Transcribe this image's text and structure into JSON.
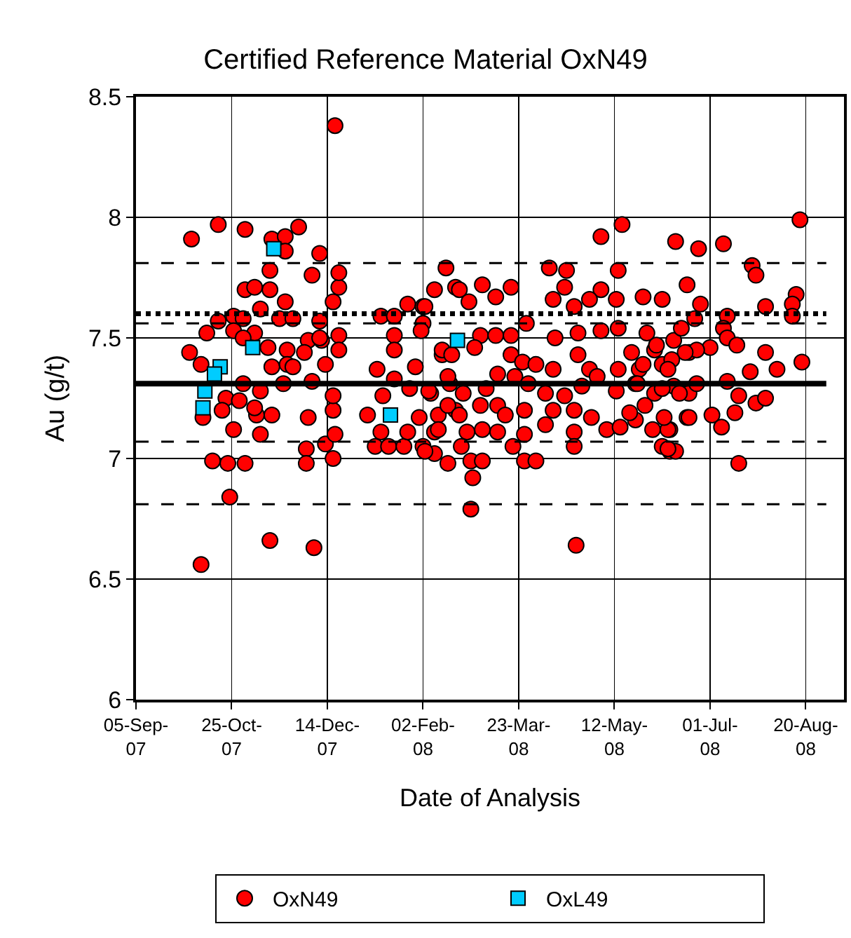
{
  "chart_data": {
    "type": "scatter",
    "title": "Certified Reference Material OxN49",
    "xlabel": "Date of Analysis",
    "ylabel": "Au (g/t)",
    "xlim": [
      "2007-09-05",
      "2008-09-09"
    ],
    "xticks": [
      {
        "value": "2007-09-05",
        "label": "05-Sep-07"
      },
      {
        "value": "2007-10-25",
        "label": "25-Oct-07"
      },
      {
        "value": "2007-12-14",
        "label": "14-Dec-07"
      },
      {
        "value": "2008-02-02",
        "label": "02-Feb-08"
      },
      {
        "value": "2008-03-23",
        "label": "23-Mar-08"
      },
      {
        "value": "2008-05-12",
        "label": "12-May-08"
      },
      {
        "value": "2008-07-01",
        "label": "01-Jul-08"
      },
      {
        "value": "2008-08-20",
        "label": "20-Aug-08"
      }
    ],
    "ylim": [
      6,
      8.5
    ],
    "yticks": [
      6,
      6.5,
      7,
      7.5,
      8,
      8.5
    ],
    "grid": true,
    "legend": "bottom",
    "marker": "circle",
    "ref_lines": [
      {
        "axis": "y",
        "value": 7.31,
        "color": "#000000",
        "line_style": "solid"
      },
      {
        "axis": "y",
        "value": 7.6,
        "color": "#000000",
        "line_style": "dotted"
      },
      {
        "axis": "y",
        "value": 7.81,
        "color": "#000000",
        "line_style": "dashed"
      },
      {
        "axis": "y",
        "value": 7.56,
        "color": "#000000",
        "line_style": "dashed"
      },
      {
        "axis": "y",
        "value": 7.07,
        "color": "#000000",
        "line_style": "dashed"
      },
      {
        "axis": "y",
        "value": 6.81,
        "color": "#000000",
        "line_style": "dashed"
      }
    ],
    "series": [
      {
        "name": "OxN49",
        "color": "#ff0000",
        "x": [
          "2007-10-04",
          "2007-10-09",
          "2007-10-03",
          "2007-10-09",
          "2007-10-12",
          "2007-10-18",
          "2007-10-15",
          "2007-10-23",
          "2007-10-24",
          "2007-11-01",
          "2007-11-01",
          "2007-10-18",
          "2007-10-26",
          "2007-10-31",
          "2007-10-26",
          "2007-11-01",
          "2007-11-06",
          "2007-11-09",
          "2007-11-06",
          "2007-10-31",
          "2007-11-14",
          "2007-11-14",
          "2007-11-15",
          "2007-11-22",
          "2007-11-22",
          "2007-11-29",
          "2007-11-22",
          "2007-11-19",
          "2007-11-26",
          "2007-11-13",
          "2007-11-15",
          "2007-11-23",
          "2007-11-23",
          "2007-11-26",
          "2007-11-21",
          "2007-12-04",
          "2007-12-02",
          "2007-12-06",
          "2007-12-10",
          "2007-12-10",
          "2007-12-11",
          "2007-12-13",
          "2007-12-06",
          "2007-12-04",
          "2007-12-03",
          "2007-12-03",
          "2007-12-13",
          "2007-12-17",
          "2007-12-18",
          "2007-12-17",
          "2007-12-07",
          "2007-11-14",
          "2007-12-18",
          "2007-12-17",
          "2007-12-20",
          "2007-12-20",
          "2007-12-20",
          "2007-12-20",
          "2007-10-10",
          "2007-10-26",
          "2007-11-09",
          "2007-11-15",
          "2007-11-07",
          "2007-11-06",
          "2007-10-31",
          "2007-10-22",
          "2007-10-29",
          "2007-10-20",
          "2007-11-09",
          "2007-12-17",
          "2007-12-10",
          "2008-01-09",
          "2008-01-04",
          "2008-01-08",
          "2008-01-11",
          "2008-01-18",
          "2008-01-18",
          "2008-01-18",
          "2008-01-12",
          "2008-01-11",
          "2008-01-18",
          "2008-01-25",
          "2008-01-29",
          "2008-02-02",
          "2008-02-02",
          "2008-02-08",
          "2008-02-14",
          "2008-01-31",
          "2008-02-08",
          "2008-02-02",
          "2008-02-15",
          "2008-02-08",
          "2008-01-26",
          "2008-02-06",
          "2008-02-12",
          "2008-01-15",
          "2008-01-23",
          "2008-01-25",
          "2008-02-19",
          "2008-02-16",
          "2008-02-19",
          "2008-02-21",
          "2008-03-04",
          "2008-03-19",
          "2008-02-26",
          "2008-03-11",
          "2008-03-27",
          "2008-04-08",
          "2008-04-17",
          "2008-04-16",
          "2008-04-10",
          "2008-04-21",
          "2008-05-05",
          "2008-05-16",
          "2008-05-14",
          "2008-05-05",
          "2008-04-29",
          "2008-05-13",
          "2008-05-27",
          "2008-06-06",
          "2008-05-29",
          "2008-05-14",
          "2008-05-05",
          "2008-04-23",
          "2008-04-11",
          "2008-03-03",
          "2008-03-11",
          "2008-03-19",
          "2008-02-29",
          "2008-02-12",
          "2008-02-17",
          "2008-03-19",
          "2008-03-25",
          "2008-04-01",
          "2008-04-10",
          "2008-04-23",
          "2008-04-29",
          "2008-05-14",
          "2008-05-21",
          "2008-06-02",
          "2008-06-12",
          "2008-06-20",
          "2008-06-06",
          "2008-05-25",
          "2008-02-05",
          "2008-02-15",
          "2008-02-23",
          "2008-03-06",
          "2008-03-12",
          "2008-03-21",
          "2008-03-28",
          "2008-04-06",
          "2008-04-16",
          "2008-04-25",
          "2008-05-03",
          "2008-05-13",
          "2008-05-23",
          "2008-06-02",
          "2008-06-12",
          "2008-06-20",
          "2008-02-10",
          "2008-02-15",
          "2008-02-21",
          "2008-03-03",
          "2008-03-12",
          "2008-03-16",
          "2008-03-26",
          "2008-04-06",
          "2008-04-10",
          "2008-04-21",
          "2008-04-30",
          "2008-05-08",
          "2008-05-15",
          "2008-05-23",
          "2008-06-01",
          "2008-06-10",
          "2008-06-19",
          "2008-02-10",
          "2008-02-25",
          "2008-03-04",
          "2008-03-12",
          "2008-03-26",
          "2008-04-21",
          "2008-02-03",
          "2008-02-22",
          "2008-02-27",
          "2008-02-28",
          "2008-03-04",
          "2008-03-20",
          "2008-03-26",
          "2008-04-01",
          "2008-04-21",
          "2008-06-06",
          "2008-06-10",
          "2008-02-27",
          "2008-04-22",
          "2008-02-03",
          "2008-02-01",
          "2008-06-13",
          "2008-06-25",
          "2008-07-08",
          "2008-08-17",
          "2008-07-23",
          "2008-07-25",
          "2008-06-19",
          "2008-06-26",
          "2008-06-23",
          "2008-07-10",
          "2008-07-30",
          "2008-08-15",
          "2008-08-13",
          "2008-08-13",
          "2008-06-16",
          "2008-07-08",
          "2008-07-10",
          "2008-07-15",
          "2008-07-01",
          "2008-06-24",
          "2008-06-18",
          "2008-07-30",
          "2008-08-05",
          "2008-08-18",
          "2008-07-22",
          "2008-07-10",
          "2008-07-16",
          "2008-07-25",
          "2008-07-30",
          "2008-07-14",
          "2008-07-02",
          "2008-07-07",
          "2008-07-16",
          "2008-06-09",
          "2008-06-13",
          "2008-06-09",
          "2008-06-20",
          "2008-06-07",
          "2008-05-28",
          "2008-05-20",
          "2008-06-06",
          "2008-06-15",
          "2008-06-24",
          "2008-05-27",
          "2008-06-03",
          "2008-06-11",
          "2008-06-09",
          "2008-05-24"
        ],
        "values": [
          7.91,
          6.56,
          7.44,
          7.39,
          7.52,
          7.97,
          6.99,
          6.98,
          6.84,
          6.98,
          7.95,
          7.57,
          7.59,
          7.58,
          7.53,
          7.7,
          7.71,
          7.62,
          7.52,
          7.5,
          7.7,
          7.78,
          7.91,
          7.92,
          7.86,
          7.96,
          7.65,
          7.58,
          7.58,
          7.46,
          7.38,
          7.45,
          7.39,
          7.38,
          7.31,
          7.49,
          7.44,
          7.76,
          7.85,
          7.57,
          7.49,
          7.39,
          7.32,
          7.17,
          7.04,
          6.98,
          7.06,
          7.0,
          7.1,
          7.2,
          6.63,
          6.66,
          8.38,
          7.65,
          7.71,
          7.77,
          7.51,
          7.45,
          7.17,
          7.12,
          7.1,
          7.18,
          7.18,
          7.21,
          7.31,
          7.25,
          7.24,
          7.2,
          7.28,
          7.26,
          7.5,
          7.37,
          7.18,
          7.05,
          7.59,
          7.59,
          7.51,
          7.45,
          7.26,
          7.11,
          7.33,
          7.64,
          7.38,
          7.63,
          7.56,
          7.7,
          7.79,
          7.17,
          7.11,
          7.05,
          6.98,
          7.02,
          7.29,
          7.27,
          7.43,
          7.05,
          7.05,
          7.11,
          7.2,
          7.31,
          7.71,
          7.7,
          7.72,
          7.71,
          7.65,
          7.67,
          7.56,
          7.79,
          7.78,
          7.71,
          7.66,
          7.63,
          7.92,
          7.97,
          7.78,
          7.7,
          7.66,
          7.66,
          7.67,
          7.66,
          7.52,
          7.54,
          7.53,
          7.52,
          7.5,
          7.51,
          7.51,
          7.51,
          7.46,
          7.45,
          7.43,
          7.43,
          7.4,
          7.39,
          7.37,
          7.43,
          7.37,
          7.37,
          7.44,
          7.45,
          7.49,
          7.44,
          7.39,
          7.37,
          7.28,
          7.34,
          7.27,
          7.29,
          7.35,
          7.34,
          7.31,
          7.27,
          7.26,
          7.3,
          7.34,
          7.28,
          7.31,
          7.27,
          7.3,
          7.27,
          7.18,
          7.22,
          7.18,
          7.22,
          7.22,
          7.18,
          7.2,
          7.14,
          7.2,
          7.2,
          7.17,
          7.12,
          7.13,
          7.16,
          7.12,
          7.12,
          7.17,
          7.12,
          7.11,
          7.12,
          7.11,
          7.1,
          7.11,
          7.03,
          7.05,
          6.99,
          6.92,
          6.99,
          7.05,
          6.99,
          6.99,
          7.05,
          7.05,
          7.03,
          6.79,
          6.64,
          7.63,
          7.53,
          7.9,
          7.87,
          7.89,
          7.99,
          7.8,
          7.76,
          7.72,
          7.64,
          7.58,
          7.59,
          7.63,
          7.68,
          7.64,
          7.59,
          7.54,
          7.54,
          7.5,
          7.47,
          7.46,
          7.45,
          7.44,
          7.44,
          7.37,
          7.4,
          7.36,
          7.32,
          7.26,
          7.23,
          7.25,
          7.19,
          7.18,
          7.13,
          6.98,
          7.12,
          7.03,
          7.04,
          7.17,
          7.17,
          7.22,
          7.19,
          7.29,
          7.27,
          7.31,
          7.39,
          7.47,
          7.41,
          7.37,
          7.31
        ]
      },
      {
        "name": "OxL49",
        "color": "#00ccff",
        "marker": "square",
        "x": [
          "2007-11-16",
          "2007-11-05",
          "2007-10-19",
          "2007-10-16",
          "2007-10-11",
          "2007-10-10",
          "2008-01-16",
          "2008-02-20"
        ],
        "values": [
          7.87,
          7.46,
          7.38,
          7.35,
          7.28,
          7.21,
          7.18,
          7.49
        ]
      }
    ]
  }
}
